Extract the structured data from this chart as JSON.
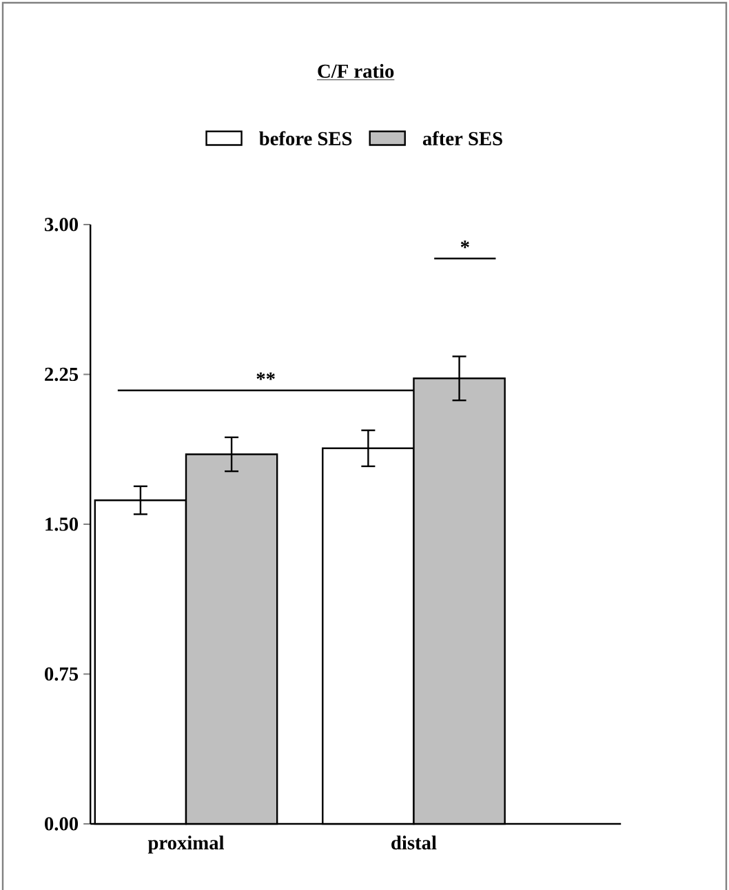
{
  "chart_data": {
    "type": "bar",
    "title": "C/F ratio",
    "categories": [
      "proximal",
      "distal"
    ],
    "series": [
      {
        "name": "before SES",
        "color": "#ffffff",
        "values": [
          1.62,
          1.88
        ],
        "errors": [
          0.07,
          0.09
        ]
      },
      {
        "name": "after SES",
        "color": "#bfbfbf",
        "values": [
          1.85,
          2.23
        ],
        "errors": [
          0.085,
          0.11
        ]
      }
    ],
    "ylim": [
      0,
      3.0
    ],
    "yticks": [
      {
        "value": 0,
        "label": "0.00"
      },
      {
        "value": 0.75,
        "label": "0.75"
      },
      {
        "value": 1.5,
        "label": "1.50"
      },
      {
        "value": 2.25,
        "label": "2.25"
      },
      {
        "value": 3.0,
        "label": "3.00"
      }
    ],
    "grid": false,
    "legend": "top",
    "annotations": [
      "**",
      "*"
    ]
  }
}
